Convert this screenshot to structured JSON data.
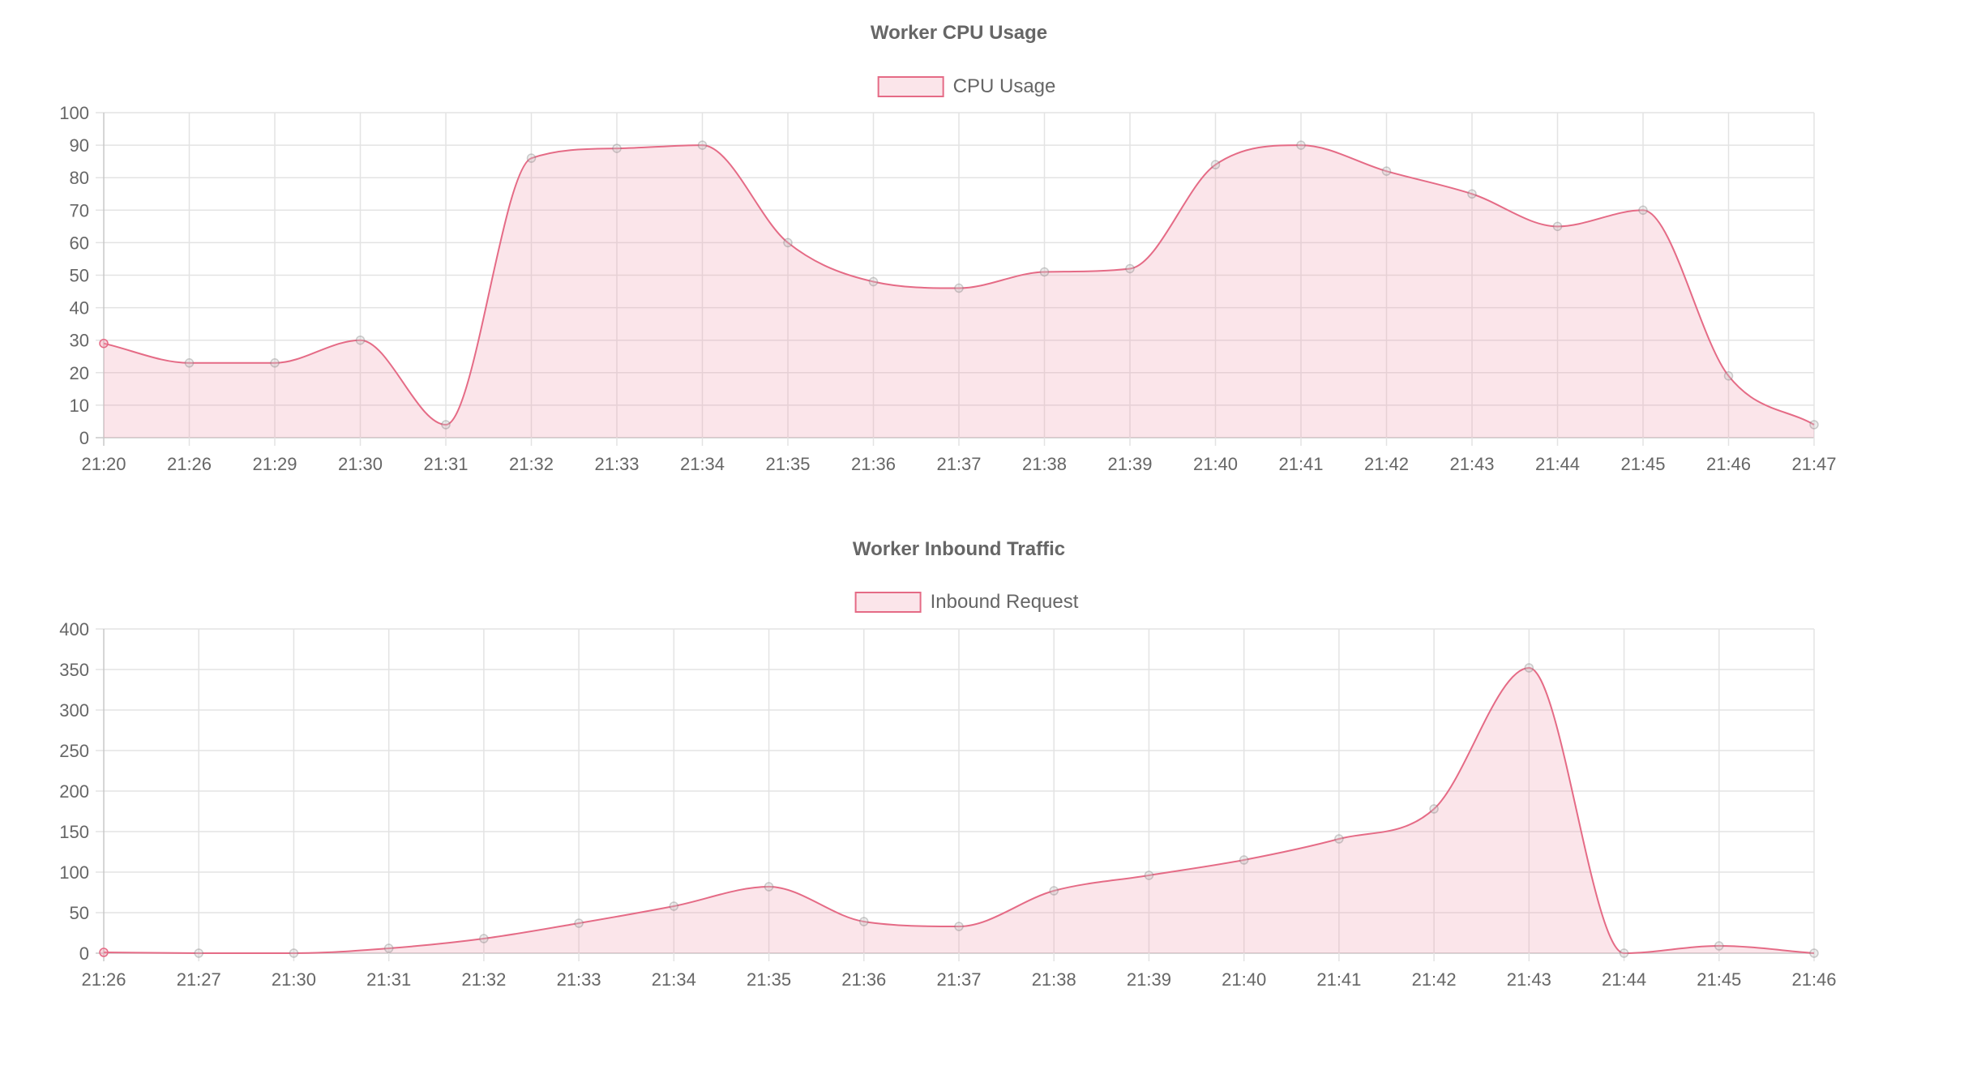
{
  "colors": {
    "line": "#e56b86",
    "fill": "rgba(240,150,170,0.25)",
    "point": "rgba(120,120,120,0.35)",
    "grid": "#e3e3e3",
    "text": "#666666"
  },
  "chart_data": [
    {
      "id": "cpu",
      "type": "area",
      "title": "Worker CPU Usage",
      "legend_position": "top-center",
      "grid": true,
      "ylim": [
        0,
        100
      ],
      "yticks": [
        0,
        10,
        20,
        30,
        40,
        50,
        60,
        70,
        80,
        90,
        100
      ],
      "categories": [
        "21:20",
        "21:26",
        "21:29",
        "21:30",
        "21:31",
        "21:32",
        "21:33",
        "21:34",
        "21:35",
        "21:36",
        "21:37",
        "21:38",
        "21:39",
        "21:40",
        "21:41",
        "21:42",
        "21:43",
        "21:44",
        "21:45",
        "21:46",
        "21:47"
      ],
      "series": [
        {
          "name": "CPU Usage",
          "values": [
            29,
            23,
            23,
            30,
            4,
            86,
            89,
            90,
            60,
            48,
            46,
            51,
            52,
            84,
            90,
            82,
            75,
            65,
            70,
            19,
            4
          ]
        }
      ]
    },
    {
      "id": "traffic",
      "type": "area",
      "title": "Worker Inbound Traffic",
      "legend_position": "top-center",
      "grid": true,
      "ylim": [
        0,
        400
      ],
      "yticks": [
        0,
        50,
        100,
        150,
        200,
        250,
        300,
        350,
        400
      ],
      "categories": [
        "21:26",
        "21:27",
        "21:30",
        "21:31",
        "21:32",
        "21:33",
        "21:34",
        "21:35",
        "21:36",
        "21:37",
        "21:38",
        "21:39",
        "21:40",
        "21:41",
        "21:42",
        "21:43",
        "21:44",
        "21:45",
        "21:46"
      ],
      "series": [
        {
          "name": "Inbound Request",
          "values": [
            1,
            0,
            0,
            6,
            18,
            37,
            58,
            82,
            39,
            33,
            77,
            96,
            115,
            141,
            178,
            352,
            0,
            9,
            0
          ]
        }
      ]
    }
  ]
}
